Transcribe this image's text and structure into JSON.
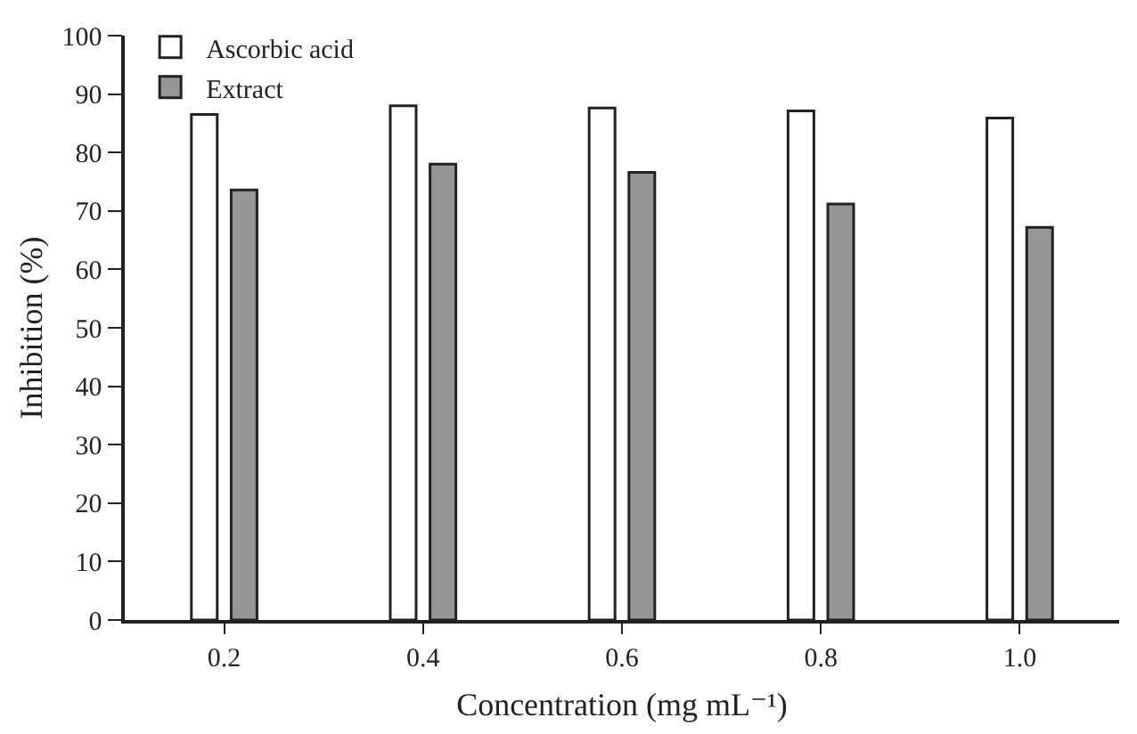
{
  "chart_data": {
    "type": "bar",
    "xlabel": "Concentration (mg mL⁻¹)",
    "ylabel": "Inhibition (%)",
    "categories": [
      "0.2",
      "0.4",
      "0.6",
      "0.8",
      "1.0"
    ],
    "series": [
      {
        "name": "Ascorbic acid",
        "color": "#ffffff",
        "values": [
          86.5,
          88.0,
          87.6,
          87.1,
          85.9
        ]
      },
      {
        "name": "Extract",
        "color": "#969696",
        "values": [
          73.6,
          78.0,
          76.6,
          71.2,
          67.2
        ]
      }
    ],
    "ylim": [
      0,
      100
    ],
    "yticks": [
      0,
      10,
      20,
      30,
      40,
      50,
      60,
      70,
      80,
      90,
      100
    ],
    "grid": false,
    "legend": "top left"
  }
}
